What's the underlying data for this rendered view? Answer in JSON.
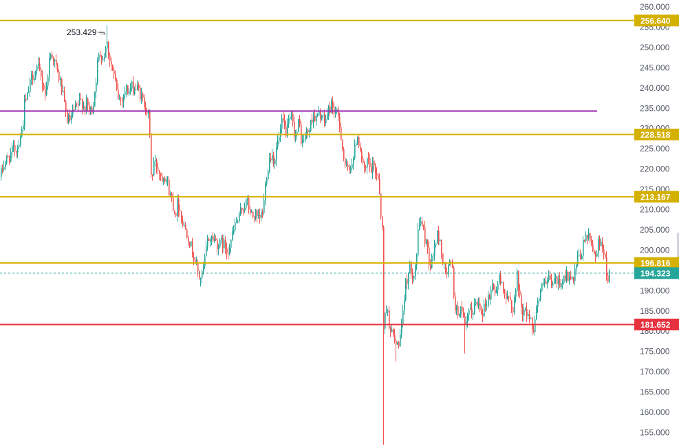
{
  "chart_data": {
    "type": "candlestick",
    "ylim": [
      152,
      261
    ],
    "grid": false,
    "y_ticks": [
      "260.000",
      "255.000",
      "250.000",
      "245.000",
      "240.000",
      "235.000",
      "230.000",
      "225.000",
      "220.000",
      "215.000",
      "210.000",
      "205.000",
      "200.000",
      "195.000",
      "190.000",
      "185.000",
      "180.000",
      "175.000",
      "170.000",
      "165.000",
      "160.000",
      "155.000"
    ],
    "price_path": [
      [
        0,
        218
      ],
      [
        4,
        221
      ],
      [
        8,
        222
      ],
      [
        12,
        223
      ],
      [
        16,
        224
      ],
      [
        20,
        225
      ],
      [
        24,
        225
      ],
      [
        28,
        228
      ],
      [
        32,
        230
      ],
      [
        35,
        236
      ],
      [
        38,
        237
      ],
      [
        42,
        240
      ],
      [
        46,
        243
      ],
      [
        50,
        244
      ],
      [
        54,
        245
      ],
      [
        58,
        243
      ],
      [
        62,
        241
      ],
      [
        66,
        238
      ],
      [
        70,
        246
      ],
      [
        74,
        249
      ],
      [
        78,
        247
      ],
      [
        82,
        244
      ],
      [
        86,
        242
      ],
      [
        90,
        239
      ],
      [
        94,
        234
      ],
      [
        98,
        232
      ],
      [
        102,
        232
      ],
      [
        106,
        234
      ],
      [
        110,
        235
      ],
      [
        114,
        236
      ],
      [
        118,
        237
      ],
      [
        122,
        235
      ],
      [
        126,
        236
      ],
      [
        130,
        234
      ],
      [
        134,
        235
      ],
      [
        138,
        241
      ],
      [
        142,
        247
      ],
      [
        146,
        249
      ],
      [
        150,
        247
      ],
      [
        154,
        252
      ],
      [
        158,
        248
      ],
      [
        162,
        245
      ],
      [
        166,
        242
      ],
      [
        170,
        238
      ],
      [
        174,
        237
      ],
      [
        178,
        238
      ],
      [
        182,
        240
      ],
      [
        186,
        239
      ],
      [
        190,
        240
      ],
      [
        194,
        240
      ],
      [
        198,
        240
      ],
      [
        202,
        239
      ],
      [
        206,
        237
      ],
      [
        210,
        236
      ],
      [
        214,
        234
      ],
      [
        216,
        232
      ],
      [
        220,
        215
      ],
      [
        222,
        222
      ],
      [
        226,
        221
      ],
      [
        230,
        220
      ],
      [
        234,
        218
      ],
      [
        238,
        219
      ],
      [
        242,
        217
      ],
      [
        246,
        214
      ],
      [
        250,
        212
      ],
      [
        254,
        209
      ],
      [
        258,
        212
      ],
      [
        262,
        209
      ],
      [
        266,
        206
      ],
      [
        270,
        205
      ],
      [
        274,
        203
      ],
      [
        278,
        200
      ],
      [
        282,
        198
      ],
      [
        286,
        195
      ],
      [
        290,
        193
      ],
      [
        294,
        194
      ],
      [
        298,
        199
      ],
      [
        302,
        203
      ],
      [
        306,
        203
      ],
      [
        310,
        203
      ],
      [
        314,
        202
      ],
      [
        318,
        201
      ],
      [
        322,
        202
      ],
      [
        326,
        201
      ],
      [
        330,
        200
      ],
      [
        334,
        202
      ],
      [
        338,
        204
      ],
      [
        342,
        207
      ],
      [
        346,
        207
      ],
      [
        350,
        210
      ],
      [
        354,
        211
      ],
      [
        358,
        212
      ],
      [
        362,
        210
      ],
      [
        366,
        208
      ],
      [
        370,
        209
      ],
      [
        374,
        207
      ],
      [
        378,
        208
      ],
      [
        382,
        210
      ],
      [
        386,
        218
      ],
      [
        390,
        222
      ],
      [
        394,
        224
      ],
      [
        398,
        222
      ],
      [
        402,
        226
      ],
      [
        406,
        228
      ],
      [
        410,
        232
      ],
      [
        414,
        229
      ],
      [
        418,
        230
      ],
      [
        422,
        233
      ],
      [
        426,
        230
      ],
      [
        430,
        228
      ],
      [
        434,
        232
      ],
      [
        438,
        226
      ],
      [
        442,
        228
      ],
      [
        446,
        229
      ],
      [
        450,
        230
      ],
      [
        454,
        234
      ],
      [
        458,
        232
      ],
      [
        462,
        233
      ],
      [
        466,
        234
      ],
      [
        470,
        231
      ],
      [
        474,
        233
      ],
      [
        478,
        235
      ],
      [
        482,
        236
      ],
      [
        486,
        234
      ],
      [
        490,
        233
      ],
      [
        494,
        230
      ],
      [
        498,
        224
      ],
      [
        502,
        220
      ],
      [
        506,
        219
      ],
      [
        510,
        222
      ],
      [
        514,
        223
      ],
      [
        518,
        229
      ],
      [
        522,
        226
      ],
      [
        526,
        222
      ],
      [
        530,
        218
      ],
      [
        534,
        223
      ],
      [
        538,
        219
      ],
      [
        542,
        221
      ],
      [
        546,
        219
      ],
      [
        550,
        218
      ],
      [
        552,
        211
      ],
      [
        555,
        205
      ],
      [
        557,
        180
      ],
      [
        560,
        187
      ],
      [
        564,
        183
      ],
      [
        568,
        180
      ],
      [
        572,
        178
      ],
      [
        576,
        176
      ],
      [
        580,
        178
      ],
      [
        584,
        181
      ],
      [
        586,
        186
      ],
      [
        588,
        191
      ],
      [
        592,
        194
      ],
      [
        596,
        196
      ],
      [
        600,
        194
      ],
      [
        604,
        197
      ],
      [
        608,
        206
      ],
      [
        612,
        208
      ],
      [
        616,
        203
      ],
      [
        620,
        202
      ],
      [
        624,
        196
      ],
      [
        628,
        198
      ],
      [
        632,
        202
      ],
      [
        636,
        204
      ],
      [
        640,
        201
      ],
      [
        644,
        196
      ],
      [
        648,
        194
      ],
      [
        652,
        196
      ],
      [
        656,
        197
      ],
      [
        660,
        187
      ],
      [
        664,
        184
      ],
      [
        668,
        186
      ],
      [
        672,
        183
      ],
      [
        676,
        180
      ],
      [
        680,
        185
      ],
      [
        684,
        184
      ],
      [
        688,
        186
      ],
      [
        692,
        187
      ],
      [
        696,
        187
      ],
      [
        700,
        185
      ],
      [
        704,
        186
      ],
      [
        708,
        188
      ],
      [
        712,
        189
      ],
      [
        716,
        192
      ],
      [
        720,
        189
      ],
      [
        724,
        193
      ],
      [
        728,
        192
      ],
      [
        732,
        191
      ],
      [
        736,
        187
      ],
      [
        740,
        188
      ],
      [
        744,
        185
      ],
      [
        748,
        189
      ],
      [
        752,
        195
      ],
      [
        754,
        188
      ],
      [
        758,
        186
      ],
      [
        762,
        184
      ],
      [
        766,
        185
      ],
      [
        770,
        183
      ],
      [
        774,
        180
      ],
      [
        778,
        185
      ],
      [
        782,
        188
      ],
      [
        786,
        190
      ],
      [
        790,
        192
      ],
      [
        794,
        191
      ],
      [
        798,
        193
      ],
      [
        802,
        191
      ],
      [
        806,
        193
      ],
      [
        810,
        192
      ],
      [
        814,
        192
      ],
      [
        818,
        193
      ],
      [
        822,
        194
      ],
      [
        826,
        193
      ],
      [
        830,
        192
      ],
      [
        834,
        193
      ],
      [
        838,
        197
      ],
      [
        842,
        198
      ],
      [
        846,
        200
      ],
      [
        850,
        204
      ],
      [
        854,
        203
      ],
      [
        858,
        202
      ],
      [
        862,
        200
      ],
      [
        866,
        199
      ],
      [
        870,
        202
      ],
      [
        874,
        203
      ],
      [
        878,
        198
      ],
      [
        882,
        193
      ],
      [
        886,
        194.3
      ]
    ],
    "horizontal_levels": [
      {
        "price": 256.64,
        "label": "256.640",
        "color": "#d4b000",
        "badge": true
      },
      {
        "price": 234.3,
        "label": "",
        "color": "#9c27b0",
        "badge": false
      },
      {
        "price": 228.518,
        "label": "228.518",
        "color": "#d4b000",
        "badge": true
      },
      {
        "price": 213.167,
        "label": "213.167",
        "color": "#d4b000",
        "badge": true
      },
      {
        "price": 196.816,
        "label": "196.816",
        "color": "#d4b000",
        "badge": true
      },
      {
        "price": 181.652,
        "label": "181.652",
        "color": "#e8313f",
        "badge": true
      }
    ],
    "last_price": {
      "price": 194.323,
      "label": "194.323",
      "color": "#26a69a"
    },
    "high_marker": {
      "price": 253.429,
      "label": "253.429 →"
    },
    "wick_extremes": [
      {
        "x": 557,
        "low": 152
      },
      {
        "x": 575,
        "low": 172.5
      },
      {
        "x": 675,
        "low": 174.5
      },
      {
        "x": 291,
        "low": 191
      },
      {
        "x": 155,
        "high": 255.5
      }
    ],
    "colors": {
      "up": "#26a69a",
      "down": "#ef5350"
    }
  }
}
